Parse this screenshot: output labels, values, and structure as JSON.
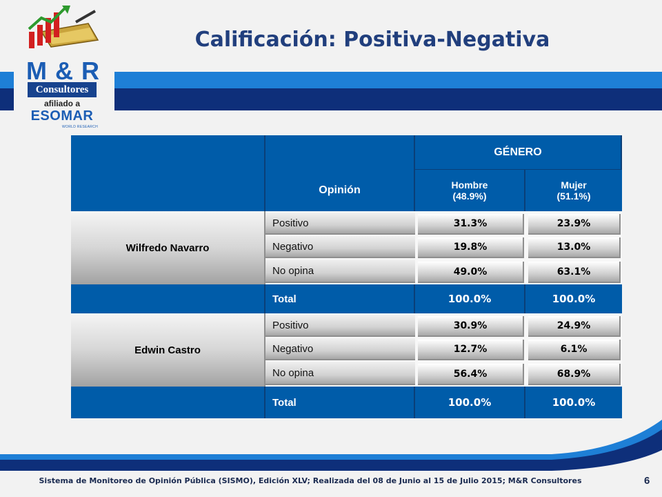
{
  "title": "Calificación: Positiva-Negativa",
  "logo": {
    "brand": "M & R",
    "consultores": "Consultores",
    "afiliado": "afiliado a",
    "esomar": "ESOMAR",
    "esomar_sub": "WORLD RESEARCH"
  },
  "table": {
    "group_header": "GÉNERO",
    "opinion_header": "Opinión",
    "columns": [
      {
        "line1": "Hombre",
        "line2": "(48.9%)"
      },
      {
        "line1": "Mujer",
        "line2": "(51.1%)"
      }
    ],
    "candidates": [
      {
        "name": "Wilfredo Navarro",
        "rows": [
          {
            "label": "Positivo",
            "values": [
              "31.3%",
              "23.9%"
            ]
          },
          {
            "label": "Negativo",
            "values": [
              "19.8%",
              "13.0%"
            ]
          },
          {
            "label": "No opina",
            "values": [
              "49.0%",
              "63.1%"
            ]
          }
        ],
        "total": {
          "label": "Total",
          "values": [
            "100.0%",
            "100.0%"
          ]
        }
      },
      {
        "name": "Edwin Castro",
        "rows": [
          {
            "label": "Positivo",
            "values": [
              "30.9%",
              "24.9%"
            ]
          },
          {
            "label": "Negativo",
            "values": [
              "12.7%",
              "6.1%"
            ]
          },
          {
            "label": "No opina",
            "values": [
              "56.4%",
              "68.9%"
            ]
          }
        ],
        "total": {
          "label": "Total",
          "values": [
            "100.0%",
            "100.0%"
          ]
        }
      }
    ]
  },
  "footer": {
    "text": "Sistema de Monitoreo de Opinión Pública (SISMO), Edición XLV; Realizada del 08 de Junio al 15 de Julio 2015; M&R Consultores",
    "page_number": "6"
  },
  "colors": {
    "header_blue": "#005ca9",
    "title_blue": "#213f7d",
    "bar_light": "#1e7fd6",
    "bar_dark": "#0e2f7a"
  }
}
